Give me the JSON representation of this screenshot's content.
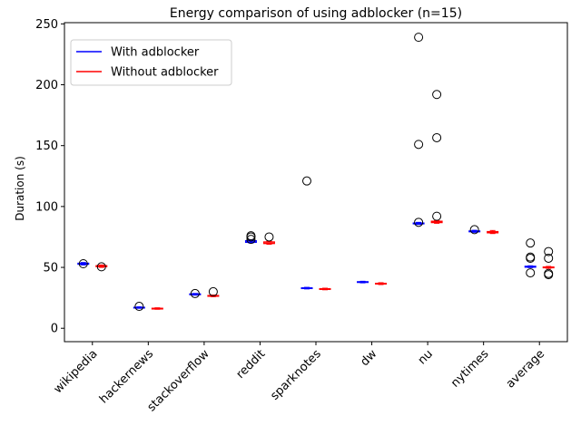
{
  "chart_data": {
    "type": "box",
    "title": "Energy comparison of using adblocker (n=15)",
    "xlabel": "",
    "ylabel": "Duration (s)",
    "ylim": [
      -11,
      251
    ],
    "yticks": [
      0,
      50,
      100,
      150,
      200,
      250
    ],
    "categories": [
      "wikipedia",
      "hackernews",
      "stackoverflow",
      "reddit",
      "sparknotes",
      "dw",
      "nu",
      "nytimes",
      "average"
    ],
    "grid": false,
    "legend_position": "top-left",
    "series": [
      {
        "name": "With adblocker",
        "color": "#0000ff",
        "boxes": [
          {
            "q1": 52.5,
            "median": 53,
            "q3": 53.5,
            "whislo": 52,
            "whishi": 54,
            "fliers": [
              53
            ]
          },
          {
            "q1": 16.7,
            "median": 17,
            "q3": 17.3,
            "whislo": 16.4,
            "whishi": 17.6,
            "fliers": [
              18
            ]
          },
          {
            "q1": 27.5,
            "median": 28,
            "q3": 28.3,
            "whislo": 27.2,
            "whishi": 28.6,
            "fliers": [
              28.5
            ]
          },
          {
            "q1": 70.5,
            "median": 71,
            "q3": 72,
            "whislo": 70,
            "whishi": 72.5,
            "fliers": [
              73,
              75,
              76
            ]
          },
          {
            "q1": 32.6,
            "median": 33,
            "q3": 33.3,
            "whislo": 32.3,
            "whishi": 33.6,
            "fliers": [
              121
            ]
          },
          {
            "q1": 37.6,
            "median": 38,
            "q3": 38.3,
            "whislo": 37.3,
            "whishi": 38.6,
            "fliers": []
          },
          {
            "q1": 85.7,
            "median": 86,
            "q3": 86.5,
            "whislo": 85.3,
            "whishi": 87,
            "fliers": [
              87,
              151,
              239
            ]
          },
          {
            "q1": 79.2,
            "median": 79.5,
            "q3": 80,
            "whislo": 78.8,
            "whishi": 80.5,
            "fliers": [
              81
            ]
          },
          {
            "q1": 50.1,
            "median": 50.5,
            "q3": 51,
            "whislo": 49.8,
            "whishi": 51.3,
            "fliers": [
              45.5,
              57.5,
              58.5,
              70
            ]
          }
        ]
      },
      {
        "name": "Without adblocker",
        "color": "#ff0000",
        "boxes": [
          {
            "q1": 50.5,
            "median": 51,
            "q3": 51.5,
            "whislo": 50,
            "whishi": 52,
            "fliers": [
              50.5
            ]
          },
          {
            "q1": 15.9,
            "median": 16.2,
            "q3": 16.5,
            "whislo": 15.6,
            "whishi": 16.8,
            "fliers": []
          },
          {
            "q1": 26.2,
            "median": 26.5,
            "q3": 27,
            "whislo": 25.9,
            "whishi": 27.3,
            "fliers": [
              30
            ]
          },
          {
            "q1": 69.5,
            "median": 70,
            "q3": 71,
            "whislo": 69,
            "whishi": 71.5,
            "fliers": [
              75
            ]
          },
          {
            "q1": 31.9,
            "median": 32.2,
            "q3": 32.6,
            "whislo": 31.6,
            "whishi": 32.9,
            "fliers": []
          },
          {
            "q1": 36.3,
            "median": 36.7,
            "q3": 37,
            "whislo": 35.9,
            "whishi": 37.4,
            "fliers": []
          },
          {
            "q1": 86.7,
            "median": 87.2,
            "q3": 88,
            "whislo": 86.2,
            "whishi": 88.5,
            "fliers": [
              92,
              156.5,
              192
            ]
          },
          {
            "q1": 78.3,
            "median": 78.8,
            "q3": 79.5,
            "whislo": 77.8,
            "whishi": 80.3,
            "fliers": []
          },
          {
            "q1": 49.6,
            "median": 50,
            "q3": 50.4,
            "whislo": 49.2,
            "whishi": 50.8,
            "fliers": [
              44,
              45,
              57.5,
              63
            ]
          }
        ]
      }
    ]
  }
}
